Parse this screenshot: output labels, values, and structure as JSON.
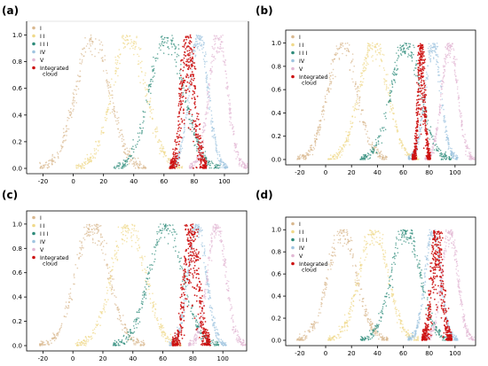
{
  "figure": {
    "colors": {
      "I": "#d9b88f",
      "II": "#f0d98a",
      "III": "#2e8b7a",
      "IV": "#9fc4e0",
      "V": "#e2b8d4",
      "integrated": "#cc1111",
      "axes": "#000000"
    }
  },
  "chart_data": [
    {
      "panel_label": "(a)",
      "type": "scatter",
      "xticks": [
        -20,
        0,
        20,
        40,
        60,
        80,
        100
      ],
      "yticks": [
        0.0,
        0.2,
        0.4,
        0.6,
        0.8,
        1.0
      ],
      "xlim": [
        -25,
        110
      ],
      "ylim": [
        0,
        1.05
      ],
      "legend": {
        "placement": "top-left",
        "entries": [
          "I",
          "I I",
          "I I I",
          "IV",
          "V",
          "Integrated cloud"
        ]
      },
      "series": [
        {
          "name": "I",
          "center": 13,
          "spread": 11
        },
        {
          "name": "I I",
          "center": 37,
          "spread": 11
        },
        {
          "name": "I I I",
          "center": 62,
          "spread": 11
        },
        {
          "name": "IV",
          "center": 83,
          "spread": 6
        },
        {
          "name": "V",
          "center": 96,
          "spread": 6
        },
        {
          "name": "Integrated cloud",
          "center": 76,
          "spread": 3.8
        }
      ]
    },
    {
      "panel_label": "(b)",
      "type": "scatter",
      "xticks": [
        -20,
        0,
        20,
        40,
        60,
        80,
        100
      ],
      "yticks": [
        0.0,
        0.2,
        0.4,
        0.6,
        0.8,
        1.0
      ],
      "xlim": [
        -25,
        110
      ],
      "ylim": [
        0,
        1.05
      ],
      "legend": {
        "placement": "top-left",
        "entries": [
          "I",
          "I I",
          "I I I",
          "IV",
          "V",
          "Integrated cloud"
        ]
      },
      "series": [
        {
          "name": "I",
          "center": 13,
          "spread": 11
        },
        {
          "name": "I I",
          "center": 37,
          "spread": 11
        },
        {
          "name": "I I I",
          "center": 62,
          "spread": 11
        },
        {
          "name": "IV",
          "center": 83,
          "spread": 6
        },
        {
          "name": "V",
          "center": 96,
          "spread": 6
        },
        {
          "name": "Integrated cloud",
          "center": 74,
          "spread": 2.2
        }
      ]
    },
    {
      "panel_label": "(c)",
      "type": "scatter",
      "xticks": [
        -20,
        0,
        20,
        40,
        60,
        80,
        100
      ],
      "yticks": [
        0.0,
        0.2,
        0.4,
        0.6,
        0.8,
        1.0
      ],
      "xlim": [
        -25,
        110
      ],
      "ylim": [
        0,
        1.05
      ],
      "legend": {
        "placement": "top-left",
        "entries": [
          "I",
          "I I",
          "I I I",
          "IV",
          "V",
          "Integrated cloud"
        ]
      },
      "series": [
        {
          "name": "I",
          "center": 13,
          "spread": 11
        },
        {
          "name": "I I",
          "center": 37,
          "spread": 11
        },
        {
          "name": "I I I",
          "center": 62,
          "spread": 11
        },
        {
          "name": "IV",
          "center": 83,
          "spread": 6
        },
        {
          "name": "V",
          "center": 96,
          "spread": 6
        },
        {
          "name": "Integrated cloud",
          "center": 79,
          "spread": 4
        }
      ]
    },
    {
      "panel_label": "(d)",
      "type": "scatter",
      "xticks": [
        -20,
        0,
        20,
        40,
        60,
        80,
        100
      ],
      "yticks": [
        0.0,
        0.2,
        0.4,
        0.6,
        0.8,
        1.0
      ],
      "xlim": [
        -25,
        110
      ],
      "ylim": [
        0,
        1.05
      ],
      "legend": {
        "placement": "top-left",
        "entries": [
          "I",
          "I I",
          "I I I",
          "IV",
          "V",
          "Integrated cloud"
        ]
      },
      "series": [
        {
          "name": "I",
          "center": 13,
          "spread": 11
        },
        {
          "name": "I I",
          "center": 37,
          "spread": 11
        },
        {
          "name": "I I I",
          "center": 62,
          "spread": 11
        },
        {
          "name": "IV",
          "center": 83,
          "spread": 6
        },
        {
          "name": "V",
          "center": 96,
          "spread": 6
        },
        {
          "name": "Integrated cloud",
          "center": 86,
          "spread": 3.6
        }
      ]
    }
  ]
}
